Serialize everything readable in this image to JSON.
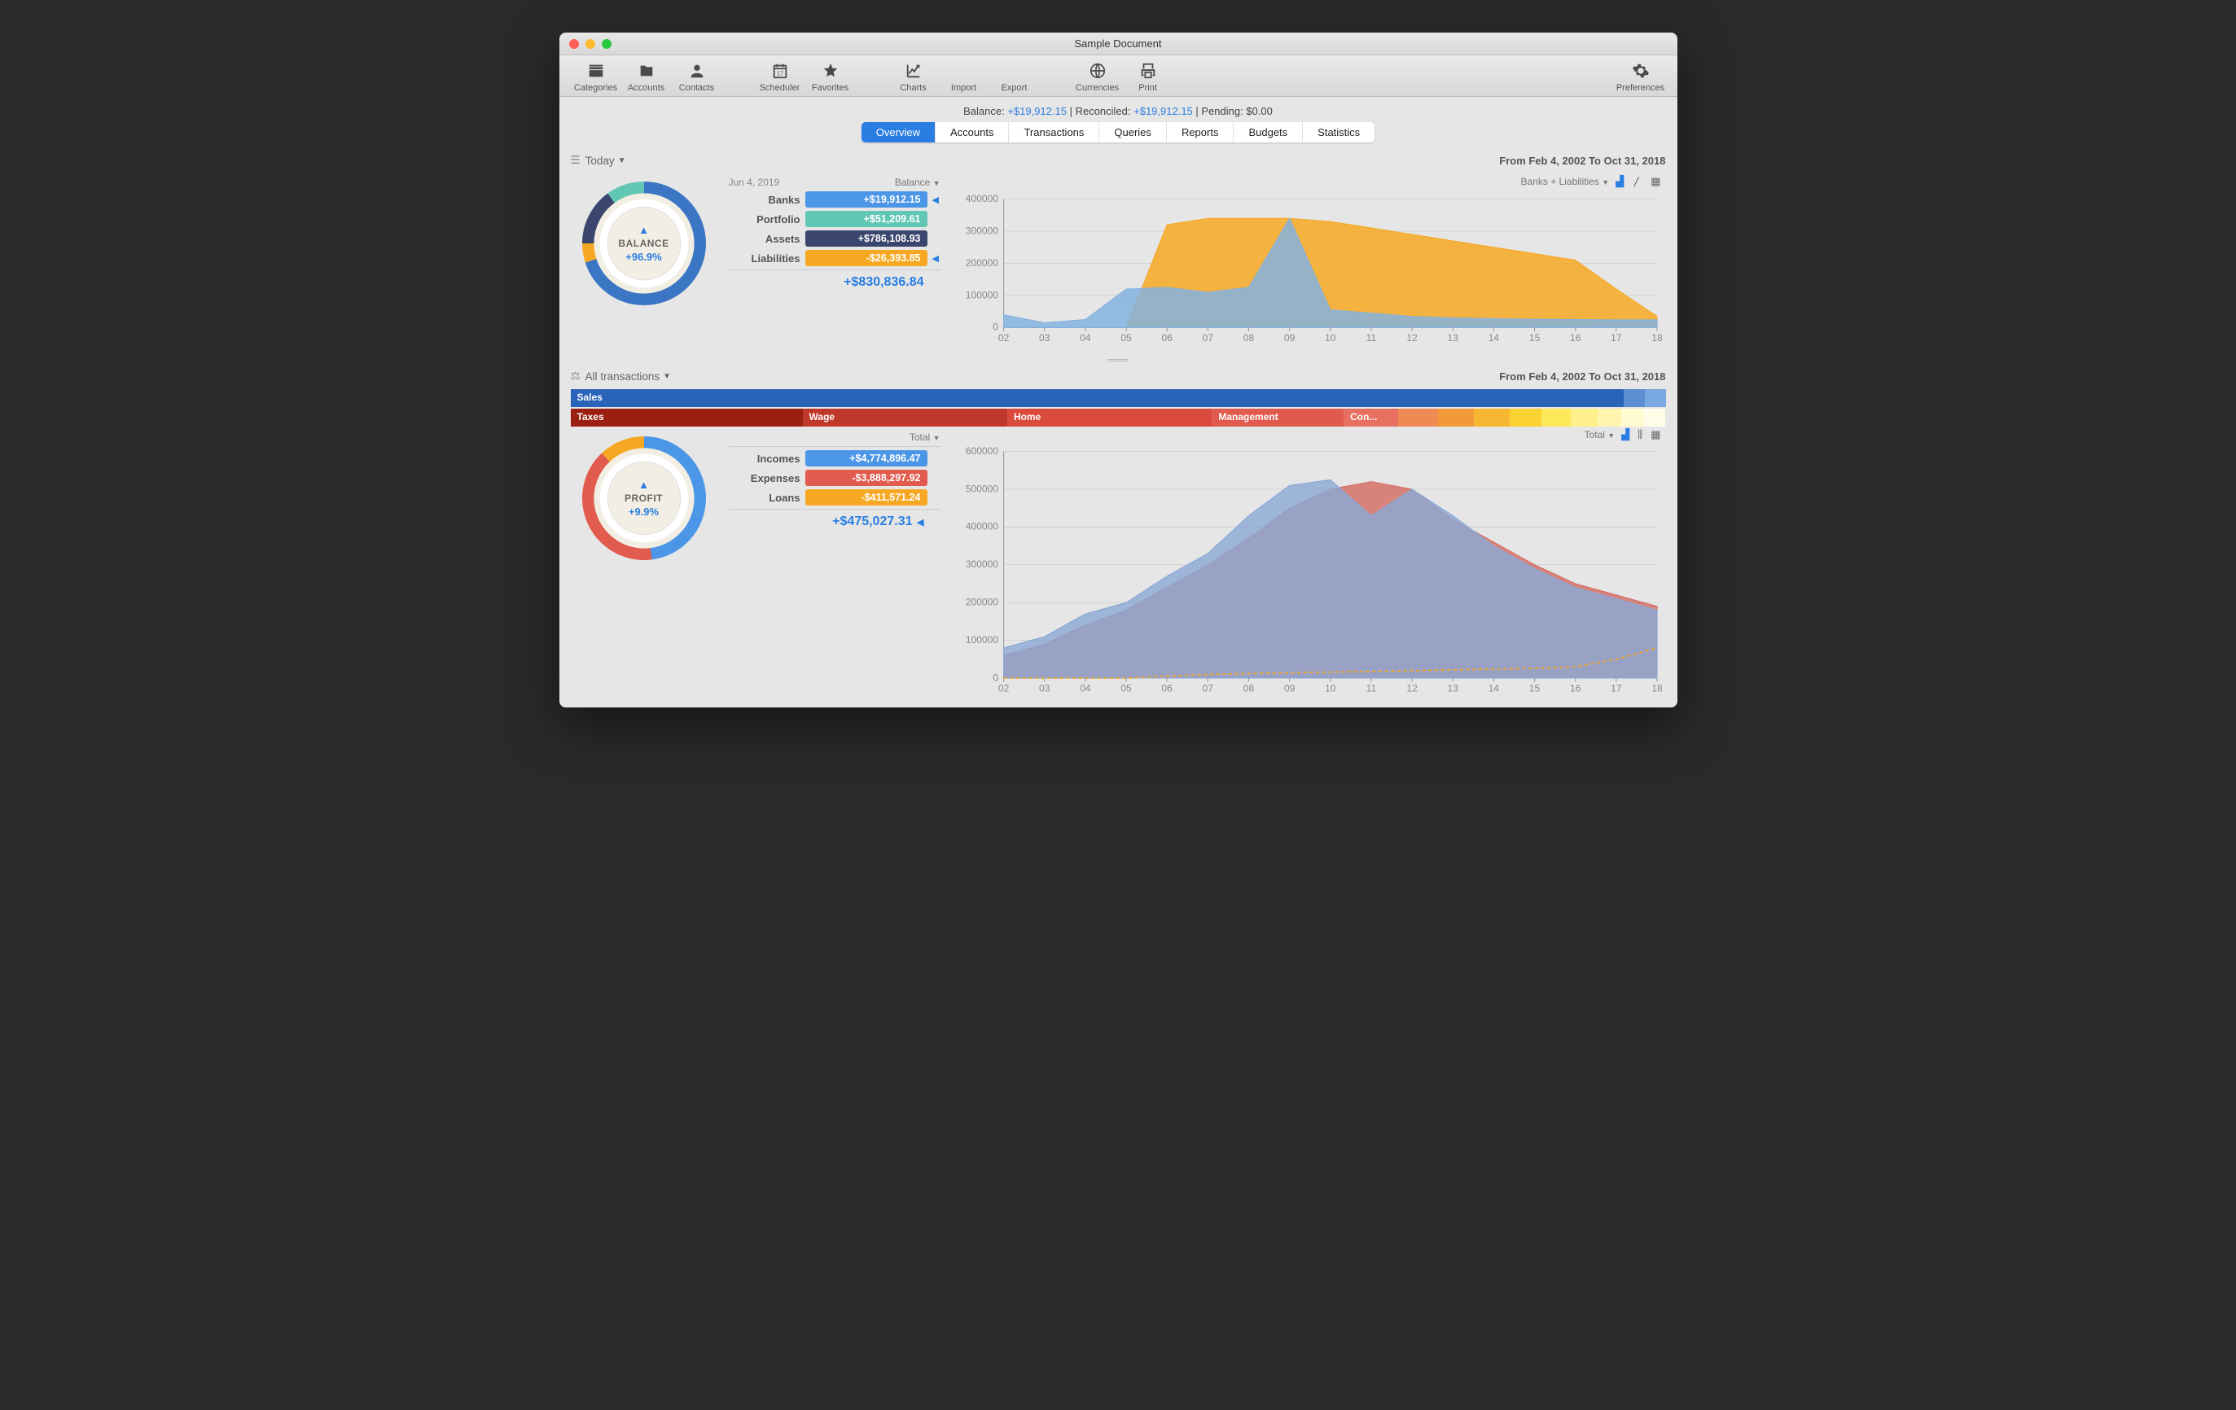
{
  "window": {
    "title": "Sample Document"
  },
  "toolbar": {
    "items": [
      [
        "Categories",
        "Accounts",
        "Contacts"
      ],
      [
        "Scheduler",
        "Favorites"
      ],
      [
        "Charts",
        "Import",
        "Export"
      ],
      [
        "Currencies",
        "Print"
      ]
    ],
    "prefs": "Preferences"
  },
  "status": {
    "balance_label": "Balance: ",
    "balance_value": "+$19,912.15",
    "reconciled_label": " | Reconciled: ",
    "reconciled_value": "+$19,912.15",
    "pending_label": " | Pending: ",
    "pending_value": "$0.00"
  },
  "tabs": [
    "Overview",
    "Accounts",
    "Transactions",
    "Queries",
    "Reports",
    "Budgets",
    "Statistics"
  ],
  "tabs_active": 0,
  "balance_section": {
    "scope_label": "Today",
    "range_label": "From Feb 4, 2002 To Oct 31, 2018",
    "legend_date": "Jun 4, 2019",
    "legend_header": "Balance",
    "donut": {
      "label": "BALANCE",
      "value": "+96.9%",
      "segments": [
        {
          "color": "#3b76c4",
          "frac": 0.7
        },
        {
          "color": "#f6a823",
          "frac": 0.05
        },
        {
          "color": "#3a466e",
          "frac": 0.15
        },
        {
          "color": "#62c6b4",
          "frac": 0.1
        }
      ],
      "outer_bg": "#f2eee3",
      "inner_bg": "#ffffff"
    },
    "rows": [
      {
        "name": "Banks",
        "value": "+$19,912.15",
        "color": "#4b96e6",
        "indicator": true
      },
      {
        "name": "Portfolio",
        "value": "+$51,209.61",
        "color": "#62c6b4",
        "indicator": false
      },
      {
        "name": "Assets",
        "value": "+$786,108.93",
        "color": "#3a466e",
        "indicator": false
      },
      {
        "name": "Liabilities",
        "value": "-$26,393.85",
        "color": "#f6a823",
        "indicator": true
      }
    ],
    "total": "+$830,836.84",
    "chart": {
      "selector_label": "Banks + Liabilities",
      "type": "area",
      "x_labels": [
        "02",
        "03",
        "04",
        "05",
        "06",
        "07",
        "08",
        "09",
        "10",
        "11",
        "12",
        "13",
        "14",
        "15",
        "16",
        "17",
        "18"
      ],
      "ylim": [
        0,
        400000
      ],
      "ytick_step": 100000,
      "series": [
        {
          "name": "liabilities",
          "color": "#f6a823",
          "opacity": 0.85,
          "values": [
            0,
            0,
            0,
            0,
            320000,
            340000,
            340000,
            340000,
            330000,
            310000,
            290000,
            270000,
            250000,
            230000,
            210000,
            120000,
            35000
          ]
        },
        {
          "name": "banks",
          "color": "#84b1de",
          "opacity": 0.85,
          "values": [
            40000,
            15000,
            25000,
            120000,
            125000,
            110000,
            125000,
            340000,
            55000,
            45000,
            35000,
            30000,
            28000,
            26000,
            25000,
            24000,
            24000
          ]
        }
      ],
      "background": "#e6e6e6",
      "grid_color": "#c8c8c8"
    }
  },
  "profit_section": {
    "scope_label": "All transactions",
    "range_label": "From Feb 4, 2002 To Oct 31, 2018",
    "donut": {
      "label": "PROFIT",
      "value": "+9.9%",
      "segments": [
        {
          "color": "#4b96e6",
          "frac": 0.48
        },
        {
          "color": "#e15b4e",
          "frac": 0.4
        },
        {
          "color": "#f6a823",
          "frac": 0.12
        }
      ],
      "outer_bg": "#f2eee3",
      "inner_bg": "#ffffff"
    },
    "legend_header": "Total",
    "rows": [
      {
        "name": "Incomes",
        "value": "+$4,774,896.47",
        "color": "#4b96e6",
        "indicator": false
      },
      {
        "name": "Expenses",
        "value": "-$3,888,297.92",
        "color": "#e15b4e",
        "indicator": false
      },
      {
        "name": "Loans",
        "value": "-$411,571.24",
        "color": "#f6a823",
        "indicator": false
      }
    ],
    "total": "+$475,027.31",
    "total_indicator": true,
    "category_bars": {
      "income": [
        {
          "label": "Sales",
          "color": "#2a64b8",
          "frac": 0.985
        },
        {
          "label": "",
          "color": "#5d8fd3",
          "frac": 0.008
        },
        {
          "label": "",
          "color": "#7aa8e0",
          "frac": 0.007
        }
      ],
      "expense": [
        {
          "label": "Taxes",
          "color": "#9a1f10",
          "frac": 0.24
        },
        {
          "label": "Wage",
          "color": "#c0382a",
          "frac": 0.21
        },
        {
          "label": "Home",
          "color": "#d94a3c",
          "frac": 0.21
        },
        {
          "label": "Management",
          "color": "#e05b4e",
          "frac": 0.13
        },
        {
          "label": "Con...",
          "color": "#e87060",
          "frac": 0.045
        },
        {
          "label": "",
          "color": "#ef8a55",
          "frac": 0.03
        },
        {
          "label": "",
          "color": "#f29a3a",
          "frac": 0.025
        },
        {
          "label": "",
          "color": "#f7b733",
          "frac": 0.025
        },
        {
          "label": "",
          "color": "#fbd233",
          "frac": 0.02
        },
        {
          "label": "",
          "color": "#fde85a",
          "frac": 0.018
        },
        {
          "label": "",
          "color": "#fef08a",
          "frac": 0.015
        },
        {
          "label": "",
          "color": "#fff4b0",
          "frac": 0.012
        },
        {
          "label": "",
          "color": "#fffad0",
          "frac": 0.01
        },
        {
          "label": "",
          "color": "#fffde8",
          "frac": 0.01
        }
      ]
    },
    "chart": {
      "selector_label": "Total",
      "type": "area",
      "x_labels": [
        "02",
        "03",
        "04",
        "05",
        "06",
        "07",
        "08",
        "09",
        "10",
        "11",
        "12",
        "13",
        "14",
        "15",
        "16",
        "17",
        "18"
      ],
      "ylim": [
        0,
        600000
      ],
      "ytick_step": 100000,
      "series": [
        {
          "name": "expenses",
          "color": "#d36a62",
          "opacity": 0.8,
          "values": [
            60000,
            90000,
            140000,
            180000,
            240000,
            300000,
            370000,
            450000,
            500000,
            520000,
            500000,
            420000,
            360000,
            300000,
            250000,
            220000,
            190000
          ]
        },
        {
          "name": "incomes",
          "color": "#8aa9d6",
          "opacity": 0.8,
          "values": [
            80000,
            110000,
            170000,
            200000,
            270000,
            330000,
            430000,
            510000,
            525000,
            430000,
            500000,
            430000,
            350000,
            290000,
            240000,
            210000,
            180000
          ]
        },
        {
          "name": "loans",
          "color": "#f6a823",
          "opacity": 1.0,
          "dash": true,
          "fill": false,
          "values": [
            0,
            0,
            0,
            0,
            5000,
            10000,
            12000,
            14000,
            16000,
            18000,
            20000,
            22000,
            24000,
            26000,
            30000,
            50000,
            80000
          ]
        }
      ],
      "background": "#e6e6e6",
      "grid_color": "#c8c8c8"
    }
  }
}
